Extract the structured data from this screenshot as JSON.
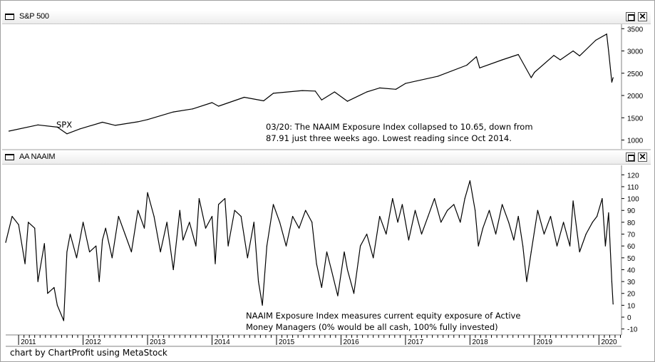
{
  "window": {
    "top_panel_title": "S&P 500",
    "bottom_panel_title": "AA NAAIM",
    "maximize_icon": "maximize-icon",
    "close_label": "✕"
  },
  "footer_text": "chart by ChartProfit using MetaStock",
  "chart_data": [
    {
      "type": "line",
      "title": "S&P 500",
      "series_label": "SPX",
      "annotation": [
        "03/20: The NAAIM Exposure Index collapsed to 10.65, down from",
        "87.91 just three weeks ago. Lowest reading since Oct 2014."
      ],
      "ylim": [
        800,
        3600
      ],
      "yticks": [
        1000,
        1500,
        2000,
        2500,
        3000,
        3500
      ],
      "ytick_labels": [
        "1000",
        "1500",
        "2000",
        "2500",
        "3000",
        "3500"
      ],
      "grid": false,
      "x": [
        2010.85,
        2011.3,
        2011.6,
        2011.75,
        2011.95,
        2012.3,
        2012.5,
        2012.85,
        2013.0,
        2013.4,
        2013.7,
        2014.0,
        2014.1,
        2014.5,
        2014.8,
        2014.95,
        2015.4,
        2015.6,
        2015.7,
        2015.9,
        2016.1,
        2016.4,
        2016.6,
        2016.85,
        2017.0,
        2017.5,
        2017.95,
        2018.1,
        2018.15,
        2018.5,
        2018.75,
        2018.95,
        2019.0,
        2019.3,
        2019.4,
        2019.6,
        2019.7,
        2019.95,
        2020.12,
        2020.15,
        2020.2,
        2020.22
      ],
      "y": [
        1200,
        1340,
        1290,
        1140,
        1250,
        1400,
        1330,
        1410,
        1460,
        1630,
        1700,
        1840,
        1760,
        1960,
        1880,
        2050,
        2110,
        2100,
        1900,
        2080,
        1870,
        2080,
        2170,
        2140,
        2270,
        2430,
        2680,
        2870,
        2620,
        2800,
        2920,
        2400,
        2520,
        2900,
        2800,
        3000,
        2890,
        3240,
        3380,
        3000,
        2300,
        2400
      ]
    },
    {
      "type": "line",
      "title": "AA NAAIM",
      "annotation": [
        "NAAIM Exposure Index measures current equity exposure of Active",
        "Money Managers (0% would be all cash, 100% fully invested)"
      ],
      "ylim": [
        -15,
        128
      ],
      "yticks": [
        -10,
        0,
        10,
        20,
        30,
        40,
        50,
        60,
        70,
        80,
        90,
        100,
        110,
        120
      ],
      "ytick_labels": [
        "-10",
        "0",
        "10",
        "20",
        "30",
        "40",
        "50",
        "60",
        "70",
        "80",
        "90",
        "100",
        "110",
        "120"
      ],
      "xticks": [
        2011,
        2012,
        2013,
        2014,
        2015,
        2016,
        2017,
        2018,
        2019,
        2020
      ],
      "xtick_labels": [
        "2011",
        "2012",
        "2013",
        "2014",
        "2015",
        "2016",
        "2017",
        "2018",
        "2019",
        "2020"
      ],
      "xlim": [
        2010.8,
        2020.35
      ],
      "grid": false,
      "x": [
        2010.8,
        2010.9,
        2011.0,
        2011.1,
        2011.15,
        2011.25,
        2011.3,
        2011.4,
        2011.45,
        2011.55,
        2011.6,
        2011.7,
        2011.75,
        2011.8,
        2011.9,
        2012.0,
        2012.1,
        2012.2,
        2012.25,
        2012.3,
        2012.35,
        2012.45,
        2012.55,
        2012.65,
        2012.75,
        2012.85,
        2012.95,
        2013.0,
        2013.1,
        2013.2,
        2013.3,
        2013.4,
        2013.5,
        2013.55,
        2013.65,
        2013.75,
        2013.8,
        2013.9,
        2014.0,
        2014.05,
        2014.1,
        2014.2,
        2014.25,
        2014.35,
        2014.45,
        2014.55,
        2014.65,
        2014.72,
        2014.78,
        2014.85,
        2014.95,
        2015.05,
        2015.15,
        2015.25,
        2015.35,
        2015.45,
        2015.55,
        2015.62,
        2015.7,
        2015.78,
        2015.85,
        2015.95,
        2016.05,
        2016.1,
        2016.2,
        2016.3,
        2016.4,
        2016.5,
        2016.6,
        2016.7,
        2016.8,
        2016.88,
        2016.95,
        2017.05,
        2017.15,
        2017.25,
        2017.35,
        2017.45,
        2017.55,
        2017.65,
        2017.75,
        2017.85,
        2017.92,
        2018.0,
        2018.08,
        2018.13,
        2018.2,
        2018.3,
        2018.4,
        2018.5,
        2018.6,
        2018.68,
        2018.75,
        2018.82,
        2018.88,
        2018.95,
        2019.05,
        2019.15,
        2019.25,
        2019.35,
        2019.45,
        2019.55,
        2019.6,
        2019.7,
        2019.8,
        2019.9,
        2019.97,
        2020.05,
        2020.1,
        2020.15,
        2020.2,
        2020.22
      ],
      "y": [
        63,
        85,
        78,
        45,
        80,
        75,
        30,
        62,
        20,
        25,
        10,
        -3,
        55,
        70,
        50,
        80,
        55,
        60,
        30,
        65,
        75,
        50,
        85,
        70,
        55,
        90,
        75,
        105,
        85,
        55,
        80,
        40,
        90,
        65,
        80,
        60,
        100,
        75,
        85,
        45,
        95,
        100,
        60,
        90,
        85,
        50,
        80,
        30,
        10,
        60,
        95,
        80,
        60,
        85,
        75,
        90,
        80,
        45,
        25,
        55,
        40,
        18,
        55,
        40,
        20,
        60,
        70,
        50,
        85,
        70,
        100,
        80,
        95,
        65,
        90,
        70,
        85,
        100,
        80,
        90,
        95,
        80,
        100,
        115,
        90,
        60,
        75,
        90,
        70,
        95,
        80,
        65,
        85,
        60,
        30,
        55,
        90,
        70,
        85,
        60,
        80,
        60,
        98,
        55,
        70,
        80,
        85,
        100,
        60,
        88,
        30,
        11
      ]
    }
  ]
}
